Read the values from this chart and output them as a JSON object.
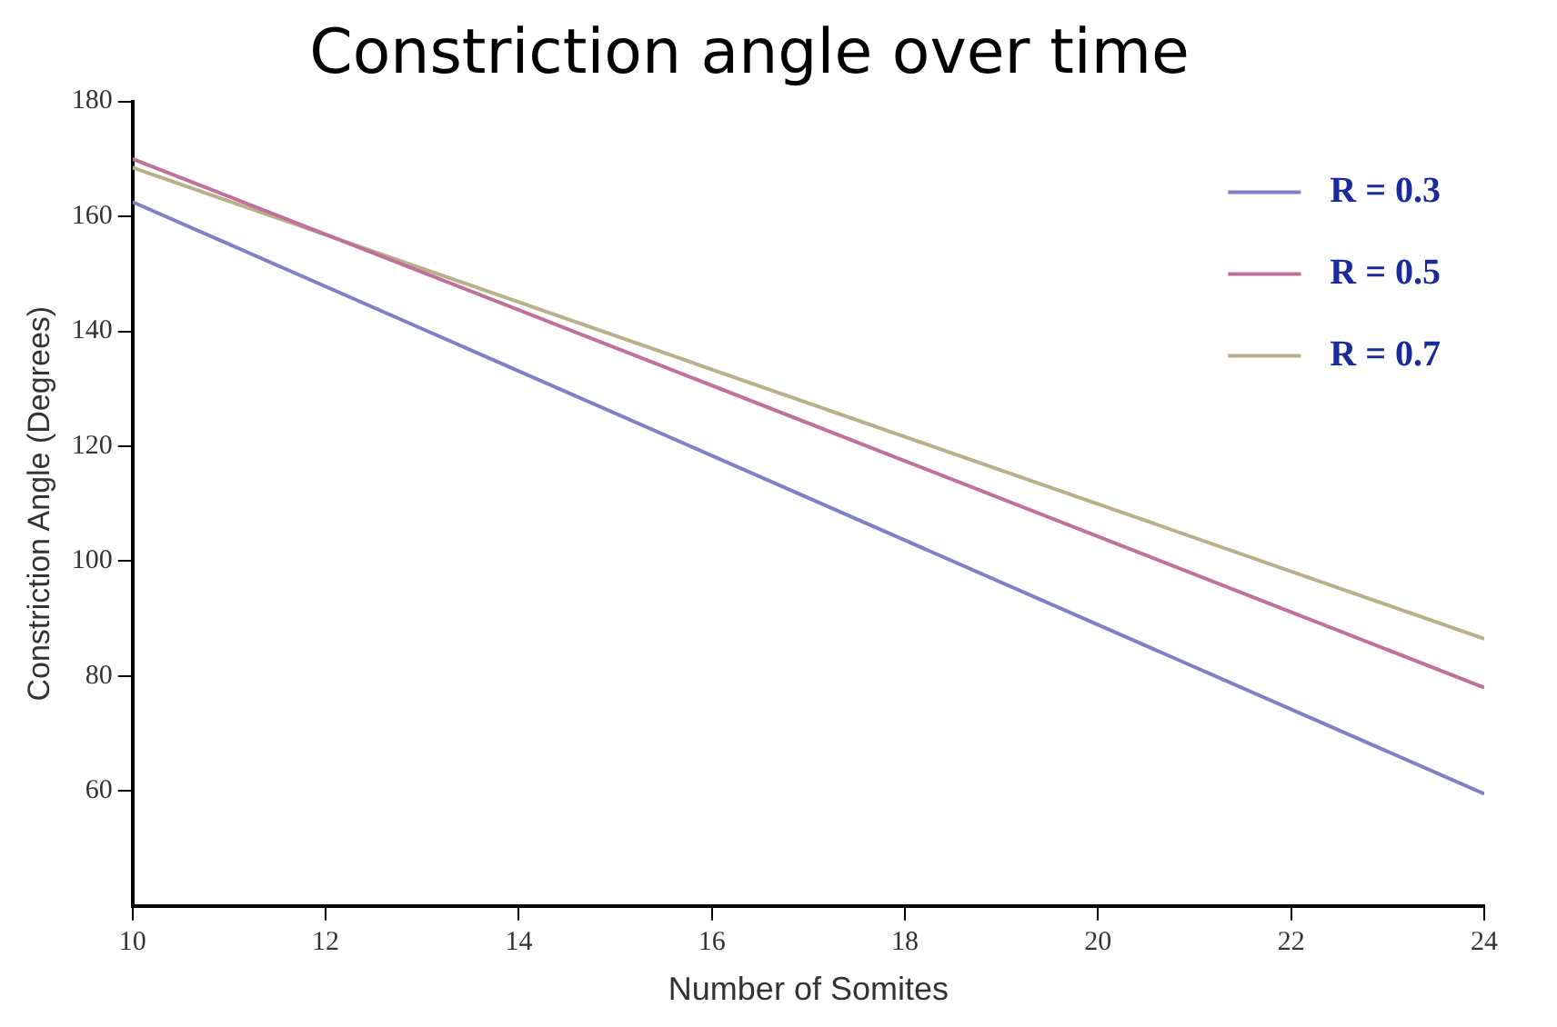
{
  "chart_data": {
    "type": "line",
    "title": "Constriction angle over time",
    "xlabel": "Number of Somites",
    "ylabel": "Constriction Angle (Degrees)",
    "xlim": [
      10,
      24
    ],
    "xticks": [
      10,
      12,
      14,
      16,
      18,
      20,
      22,
      24
    ],
    "ylim": [
      40,
      180
    ],
    "yticks": [
      60,
      80,
      100,
      120,
      140,
      160,
      180
    ],
    "x": [
      10,
      24
    ],
    "grid": false,
    "legend": "top right",
    "marker": "none",
    "line_style": "solid",
    "series": [
      {
        "name": "R = 0.3",
        "color": "#8080c8",
        "values": [
          162.5,
          59.5
        ]
      },
      {
        "name": "R = 0.5",
        "color": "#c0709a",
        "values": [
          170,
          78
        ]
      },
      {
        "name": "R = 0.7",
        "color": "#b8b088",
        "values": [
          168.5,
          86.5
        ]
      }
    ]
  }
}
